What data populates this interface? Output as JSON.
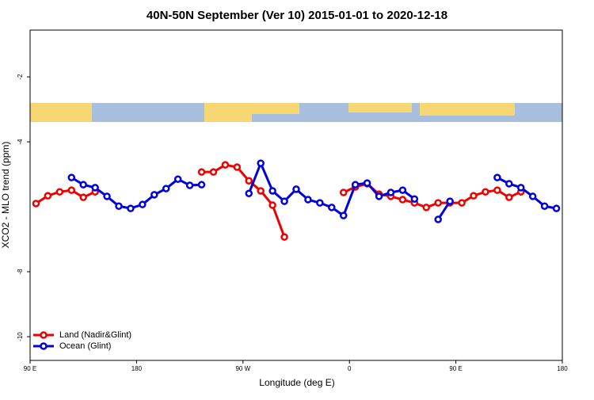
{
  "chart_data": {
    "type": "line",
    "title": "40N-50N September (Ver 10)   2015-01-01 to 2020-12-18",
    "x_label": "Longitude (deg E)",
    "y_label": "XCO2 - MLO trend (ppm)",
    "x": [
      95,
      105,
      115,
      125,
      135,
      145,
      155,
      165,
      175,
      185,
      195,
      205,
      215,
      225,
      235,
      245,
      255,
      265,
      275,
      285,
      295,
      305,
      315,
      325,
      335,
      345,
      355,
      365,
      375,
      385,
      395,
      405,
      415,
      425,
      435,
      445,
      455,
      465,
      475,
      485,
      495,
      505,
      515,
      525,
      535
    ],
    "series": [
      {
        "name": "Land (Nadir&Glint)",
        "color": "#ee0000",
        "values": [
          -5.9,
          -5.66,
          -5.54,
          -5.49,
          -5.71,
          -5.54,
          null,
          null,
          null,
          null,
          null,
          null,
          null,
          null,
          -4.93,
          -4.93,
          -4.71,
          -4.78,
          -5.2,
          -5.51,
          -5.95,
          -6.93,
          null,
          null,
          null,
          null,
          -5.56,
          -5.39,
          -5.29,
          -5.61,
          -5.68,
          -5.78,
          -5.88,
          -6.02,
          -5.88,
          -5.88,
          -5.88,
          -5.66,
          -5.54,
          -5.49,
          -5.71,
          -5.54,
          null,
          null,
          null
        ]
      },
      {
        "name": "Ocean (Glint)",
        "color": "#0000dd",
        "values": [
          null,
          null,
          null,
          -5.1,
          -5.32,
          -5.41,
          -5.68,
          -5.98,
          -6.05,
          -5.93,
          -5.63,
          -5.44,
          -5.15,
          -5.34,
          -5.32,
          null,
          null,
          null,
          -5.59,
          -4.66,
          -5.51,
          -5.83,
          -5.46,
          -5.78,
          -5.88,
          -6.02,
          -6.27,
          -5.32,
          -5.27,
          -5.68,
          -5.56,
          -5.49,
          -5.76,
          null,
          -6.39,
          -5.83,
          null,
          null,
          null,
          -5.1,
          -5.29,
          -5.41,
          -5.68,
          -5.98,
          -6.05
        ]
      }
    ],
    "xlim": [
      90,
      540
    ],
    "xticks": [
      {
        "value": 90,
        "label": "90 E"
      },
      {
        "value": 180,
        "label": "180"
      },
      {
        "value": 270,
        "label": "90 W"
      },
      {
        "value": 360,
        "label": "0"
      },
      {
        "value": 450,
        "label": "90 E"
      },
      {
        "value": 540,
        "label": "180"
      }
    ],
    "ylim": [
      -10.73,
      -0.56
    ],
    "yticks": [
      -2,
      -4,
      -8,
      -10
    ],
    "legend": "bottom-left"
  }
}
